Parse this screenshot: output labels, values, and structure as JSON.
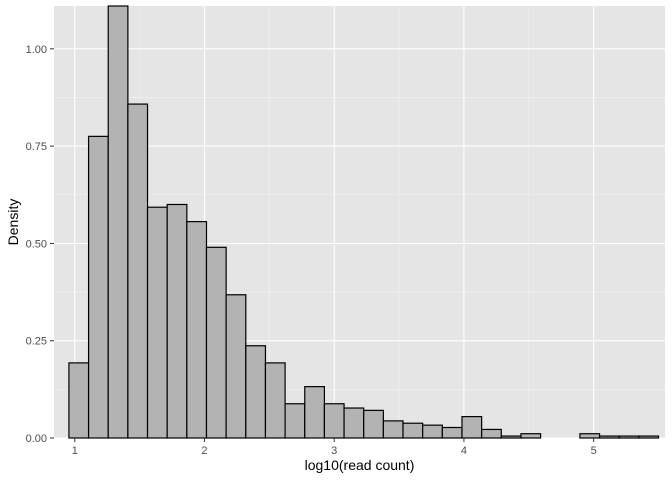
{
  "chart_data": {
    "type": "bar",
    "xlabel": "log10(read count)",
    "ylabel": "Density",
    "xlim": [
      0.84,
      5.55
    ],
    "ylim": [
      0,
      1.11
    ],
    "x_ticks": [
      1,
      2,
      3,
      4,
      5
    ],
    "x_tick_labels": [
      "1",
      "2",
      "3",
      "4",
      "5"
    ],
    "y_ticks": [
      0,
      0.25,
      0.5,
      0.75,
      1.0
    ],
    "y_tick_labels": [
      "0.00",
      "0.25",
      "0.50",
      "0.75",
      "1.00"
    ],
    "bin_width": 0.1515,
    "bin_start": 0.955,
    "values": [
      0.193,
      0.775,
      1.11,
      0.858,
      0.593,
      0.6,
      0.556,
      0.49,
      0.368,
      0.237,
      0.193,
      0.088,
      0.132,
      0.088,
      0.077,
      0.071,
      0.044,
      0.038,
      0.033,
      0.027,
      0.055,
      0.022,
      0.005,
      0.011,
      0,
      0,
      0.011,
      0.005,
      0.005,
      0.005
    ],
    "grid": true,
    "colors": {
      "panel": "#e5e5e5",
      "grid_major": "#ffffff",
      "bar_fill": "#b3b3b3",
      "bar_stroke": "#000000"
    }
  }
}
